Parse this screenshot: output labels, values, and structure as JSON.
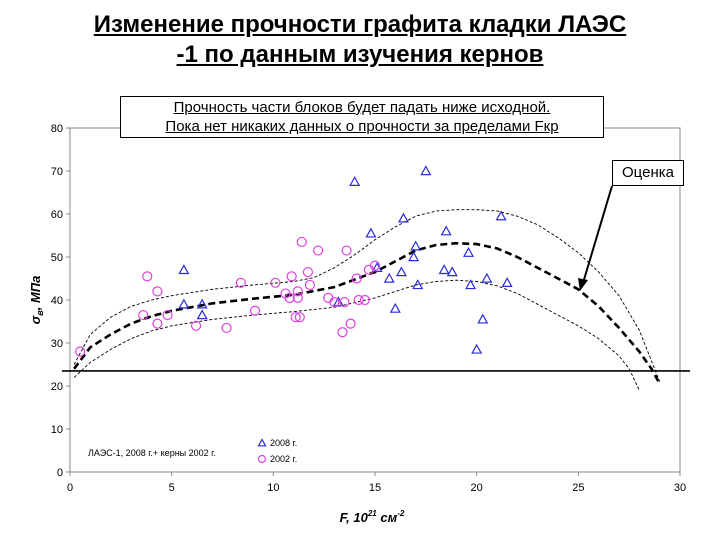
{
  "slide": {
    "title_line1": "Изменение прочности графита кладки  ЛАЭС",
    "title_line2": "-1 по данным изучения кернов",
    "note_line1": "Прочность части блоков будет падать ниже исходной.",
    "note_line2": "Пока нет никаких данных о прочности за пределами Fкр",
    "estimate_label": "Оценка"
  },
  "chart_data": {
    "type": "scatter",
    "xlabel_main": "F, 10",
    "xlabel_exp1": "21",
    "xlabel_unit": "см",
    "xlabel_exp2": "-2",
    "ylabel_main": "σ",
    "ylabel_sub": "в",
    "ylabel_unit": ", МПа",
    "xlim": [
      0,
      30
    ],
    "ylim": [
      0,
      80
    ],
    "x_ticks": [
      "0",
      "5",
      "10",
      "15",
      "20",
      "25",
      "30"
    ],
    "y_ticks": [
      "0",
      "10",
      "20",
      "30",
      "40",
      "50",
      "60",
      "70",
      "80"
    ],
    "source_legend": "ЛАЭС-1, 2008 г.+ керны 2002 г.",
    "series": [
      {
        "name": "2008 г.",
        "marker": "triangle",
        "color": "#2b2bd6",
        "points": [
          [
            5.6,
            47
          ],
          [
            5.6,
            39
          ],
          [
            6.5,
            39
          ],
          [
            6.5,
            36.5
          ],
          [
            13.2,
            39.5
          ],
          [
            14.0,
            67.5
          ],
          [
            14.8,
            55.5
          ],
          [
            15.1,
            47.5
          ],
          [
            15.7,
            45
          ],
          [
            16.0,
            38
          ],
          [
            16.3,
            46.5
          ],
          [
            16.4,
            59
          ],
          [
            16.9,
            50
          ],
          [
            17.0,
            52.5
          ],
          [
            17.1,
            43.5
          ],
          [
            17.5,
            70
          ],
          [
            18.4,
            47
          ],
          [
            18.5,
            56
          ],
          [
            18.8,
            46.5
          ],
          [
            19.6,
            51
          ],
          [
            19.7,
            43.5
          ],
          [
            20.0,
            28.5
          ],
          [
            20.3,
            35.5
          ],
          [
            20.5,
            45
          ],
          [
            21.2,
            59.5
          ],
          [
            21.5,
            44
          ]
        ]
      },
      {
        "name": "2002 г.",
        "marker": "circle",
        "color": "#e040e0",
        "points": [
          [
            0.5,
            28
          ],
          [
            3.6,
            36.5
          ],
          [
            3.8,
            45.5
          ],
          [
            4.3,
            34.5
          ],
          [
            4.3,
            42
          ],
          [
            4.8,
            36.5
          ],
          [
            6.2,
            34
          ],
          [
            7.7,
            33.5
          ],
          [
            8.4,
            44
          ],
          [
            9.1,
            37.5
          ],
          [
            10.1,
            44
          ],
          [
            10.6,
            41.5
          ],
          [
            10.8,
            40.5
          ],
          [
            10.9,
            45.5
          ],
          [
            11.1,
            36
          ],
          [
            11.2,
            40.5
          ],
          [
            11.2,
            42
          ],
          [
            11.3,
            36
          ],
          [
            11.4,
            53.5
          ],
          [
            11.7,
            46.5
          ],
          [
            11.8,
            43.5
          ],
          [
            12.2,
            51.5
          ],
          [
            12.7,
            40.5
          ],
          [
            13.0,
            39.5
          ],
          [
            13.4,
            32.5
          ],
          [
            13.5,
            39.5
          ],
          [
            13.6,
            51.5
          ],
          [
            13.8,
            34.5
          ],
          [
            14.1,
            45
          ],
          [
            14.2,
            40
          ],
          [
            14.5,
            40
          ],
          [
            14.7,
            47
          ],
          [
            15.0,
            48
          ]
        ]
      }
    ],
    "initial_strength": 23.5,
    "trend": [
      [
        0.2,
        24
      ],
      [
        1,
        29
      ],
      [
        2,
        32
      ],
      [
        3,
        34.5
      ],
      [
        4,
        36.2
      ],
      [
        5,
        37.5
      ],
      [
        7,
        39.2
      ],
      [
        9,
        40.3
      ],
      [
        11,
        41.2
      ],
      [
        13,
        43
      ],
      [
        15,
        46.5
      ],
      [
        16,
        49
      ],
      [
        17,
        51.5
      ],
      [
        18,
        52.8
      ],
      [
        19,
        53.2
      ],
      [
        20,
        53
      ],
      [
        21,
        52
      ],
      [
        22,
        50
      ],
      [
        23,
        47.5
      ],
      [
        24,
        45
      ],
      [
        25,
        42.5
      ],
      [
        26,
        38.5
      ],
      [
        27,
        33.5
      ],
      [
        28,
        28
      ],
      [
        28.6,
        24
      ],
      [
        29,
        20.5
      ]
    ],
    "upper_band": [
      [
        0.2,
        25
      ],
      [
        1,
        32
      ],
      [
        2,
        36
      ],
      [
        3,
        38.5
      ],
      [
        4,
        40
      ],
      [
        5,
        41
      ],
      [
        7,
        42.5
      ],
      [
        9,
        43.5
      ],
      [
        11,
        44.3
      ],
      [
        12,
        45.2
      ],
      [
        13,
        47.5
      ],
      [
        14,
        50.5
      ],
      [
        15,
        54
      ],
      [
        16,
        57
      ],
      [
        17,
        59.5
      ],
      [
        18,
        60.7
      ],
      [
        19,
        61
      ],
      [
        20,
        61
      ],
      [
        21,
        60.7
      ],
      [
        22,
        59.5
      ],
      [
        23,
        57.5
      ],
      [
        24,
        54.5
      ],
      [
        25,
        51
      ],
      [
        26,
        46.5
      ],
      [
        27,
        41
      ],
      [
        28,
        33
      ],
      [
        28.5,
        27
      ],
      [
        29,
        21
      ]
    ],
    "lower_band": [
      [
        0.2,
        22
      ],
      [
        1,
        25.5
      ],
      [
        2,
        28.5
      ],
      [
        3,
        31
      ],
      [
        4,
        32.8
      ],
      [
        5,
        34
      ],
      [
        7,
        35.5
      ],
      [
        9,
        36.5
      ],
      [
        11,
        37.3
      ],
      [
        13,
        38.3
      ],
      [
        15,
        40.5
      ],
      [
        16,
        42
      ],
      [
        17,
        43.5
      ],
      [
        18,
        44.3
      ],
      [
        19,
        44.6
      ],
      [
        20,
        44.3
      ],
      [
        21,
        43.3
      ],
      [
        22,
        41.5
      ],
      [
        23,
        39
      ],
      [
        24,
        36.5
      ],
      [
        25,
        34
      ],
      [
        26,
        31
      ],
      [
        27,
        27
      ],
      [
        27.5,
        24
      ],
      [
        28,
        19
      ]
    ],
    "grid": false,
    "legend_position": "lower-middle"
  }
}
